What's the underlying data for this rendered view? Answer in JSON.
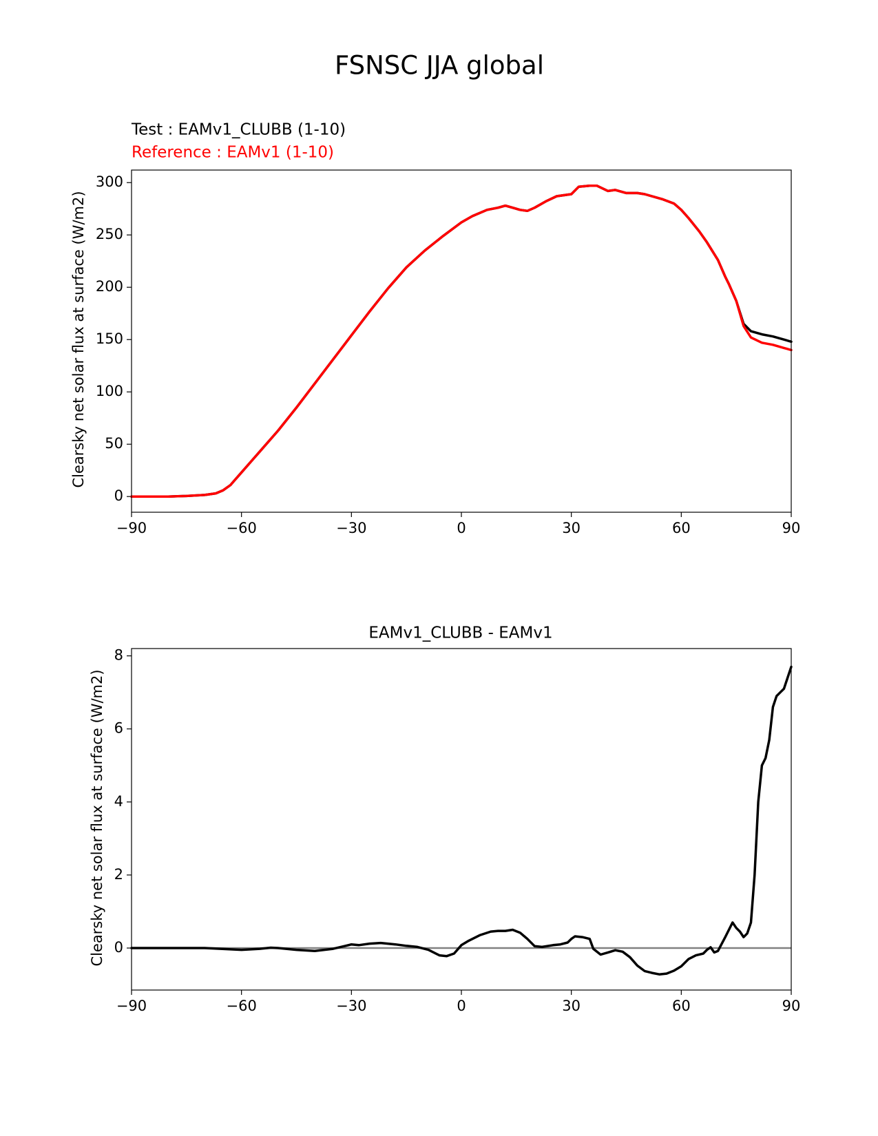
{
  "figure": {
    "title": "FSNSC JJA global"
  },
  "chart_data": [
    {
      "type": "line",
      "test_label": "Test : EAMv1_CLUBB (1-10)",
      "reference_label": "Reference : EAMv1 (1-10)",
      "ylabel": "Clearsky net solar flux at surface (W/m2)",
      "xlabel": "",
      "xlim": [
        -90,
        90
      ],
      "ylim": [
        -15,
        312
      ],
      "xticks": [
        -90,
        -60,
        -30,
        0,
        30,
        60,
        90
      ],
      "xtick_labels": [
        "−90",
        "−60",
        "−30",
        "0",
        "30",
        "60",
        "90"
      ],
      "yticks": [
        0,
        50,
        100,
        150,
        200,
        250,
        300
      ],
      "ytick_labels": [
        "0",
        "50",
        "100",
        "150",
        "200",
        "250",
        "300"
      ],
      "series": [
        {
          "name": "Test",
          "color": "#000000",
          "x": [
            -90,
            -80,
            -75,
            -70,
            -67,
            -65,
            -63,
            -62,
            -60,
            -57,
            -55,
            -50,
            -45,
            -40,
            -35,
            -30,
            -25,
            -20,
            -15,
            -10,
            -5,
            0,
            3,
            7,
            10,
            12,
            14,
            16,
            18,
            20,
            23,
            26,
            28,
            30,
            32,
            35,
            37,
            40,
            42,
            45,
            48,
            50,
            55,
            58,
            60,
            62,
            65,
            67,
            70,
            72,
            73,
            75,
            77,
            79,
            82,
            85,
            88,
            90
          ],
          "values": [
            0,
            0,
            0.5,
            1.5,
            3,
            6,
            11,
            15,
            23,
            35,
            43,
            63,
            85,
            108,
            131,
            154,
            177,
            199,
            219,
            235,
            249,
            262,
            268,
            274,
            276,
            278,
            276,
            274,
            273,
            276,
            282,
            287,
            288,
            289,
            296,
            297,
            297,
            292,
            293,
            290,
            290,
            289,
            284,
            280,
            274,
            266,
            253,
            243,
            226,
            210,
            203,
            187,
            165,
            158,
            155,
            153,
            150,
            148
          ]
        },
        {
          "name": "Reference",
          "color": "#ff0000",
          "x": [
            -90,
            -80,
            -75,
            -70,
            -67,
            -65,
            -63,
            -62,
            -60,
            -57,
            -55,
            -50,
            -45,
            -40,
            -35,
            -30,
            -25,
            -20,
            -15,
            -10,
            -5,
            0,
            3,
            7,
            10,
            12,
            14,
            16,
            18,
            20,
            23,
            26,
            28,
            30,
            32,
            35,
            37,
            40,
            42,
            45,
            48,
            50,
            55,
            58,
            60,
            62,
            65,
            67,
            70,
            72,
            73,
            75,
            77,
            79,
            82,
            85,
            88,
            90
          ],
          "values": [
            0,
            0,
            0.5,
            1.5,
            3,
            6,
            11,
            15,
            23,
            35,
            43,
            63,
            85,
            108,
            131,
            154,
            177,
            199,
            219,
            235,
            249,
            262,
            268,
            274,
            276,
            278,
            276,
            274,
            273,
            276,
            282,
            287,
            288,
            289,
            296,
            297,
            297,
            292,
            293,
            290,
            290,
            289,
            284,
            280,
            274,
            266,
            253,
            243,
            226,
            210,
            203,
            187,
            163,
            152,
            147,
            145,
            142,
            140
          ]
        }
      ]
    },
    {
      "type": "line",
      "title": "EAMv1_CLUBB - EAMv1",
      "ylabel": "Clearsky net solar flux at surface (W/m2)",
      "xlabel": "",
      "xlim": [
        -90,
        90
      ],
      "ylim": [
        -1.15,
        8.2
      ],
      "xticks": [
        -90,
        -60,
        -30,
        0,
        30,
        60,
        90
      ],
      "xtick_labels": [
        "−90",
        "−60",
        "−30",
        "0",
        "30",
        "60",
        "90"
      ],
      "yticks": [
        0,
        2,
        4,
        6,
        8
      ],
      "ytick_labels": [
        "0",
        "2",
        "4",
        "6",
        "8"
      ],
      "zero_line_color": "#808080",
      "series": [
        {
          "name": "Difference",
          "color": "#000000",
          "x": [
            -90,
            -70,
            -60,
            -55,
            -52,
            -50,
            -45,
            -40,
            -35,
            -32,
            -30,
            -28,
            -25,
            -22,
            -18,
            -15,
            -12,
            -9,
            -6,
            -4,
            -2,
            0,
            2,
            5,
            8,
            10,
            12,
            14,
            16,
            18,
            20,
            22,
            25,
            27,
            29,
            30,
            31,
            33,
            35,
            36,
            38,
            40,
            42,
            44,
            46,
            48,
            50,
            52,
            54,
            56,
            58,
            60,
            62,
            64,
            66,
            67,
            68,
            69,
            70,
            72,
            74,
            75,
            76,
            77,
            78,
            79,
            80,
            81,
            82,
            83,
            84,
            85,
            86,
            87,
            88,
            89,
            90
          ],
          "values": [
            0,
            0,
            -0.05,
            -0.02,
            0.01,
            0,
            -0.05,
            -0.08,
            -0.02,
            0.05,
            0.1,
            0.08,
            0.12,
            0.14,
            0.1,
            0.06,
            0.03,
            -0.05,
            -0.2,
            -0.22,
            -0.15,
            0.08,
            0.2,
            0.35,
            0.45,
            0.47,
            0.47,
            0.5,
            0.42,
            0.25,
            0.05,
            0.03,
            0.08,
            0.1,
            0.15,
            0.25,
            0.32,
            0.3,
            0.25,
            -0.02,
            -0.18,
            -0.12,
            -0.06,
            -0.1,
            -0.25,
            -0.48,
            -0.63,
            -0.68,
            -0.72,
            -0.7,
            -0.62,
            -0.5,
            -0.3,
            -0.2,
            -0.15,
            -0.05,
            0.02,
            -0.12,
            -0.08,
            0.3,
            0.7,
            0.55,
            0.45,
            0.3,
            0.4,
            0.7,
            2.0,
            4.0,
            5.0,
            5.2,
            5.7,
            6.6,
            6.9,
            7.0,
            7.1,
            7.4,
            7.7
          ]
        }
      ]
    }
  ]
}
